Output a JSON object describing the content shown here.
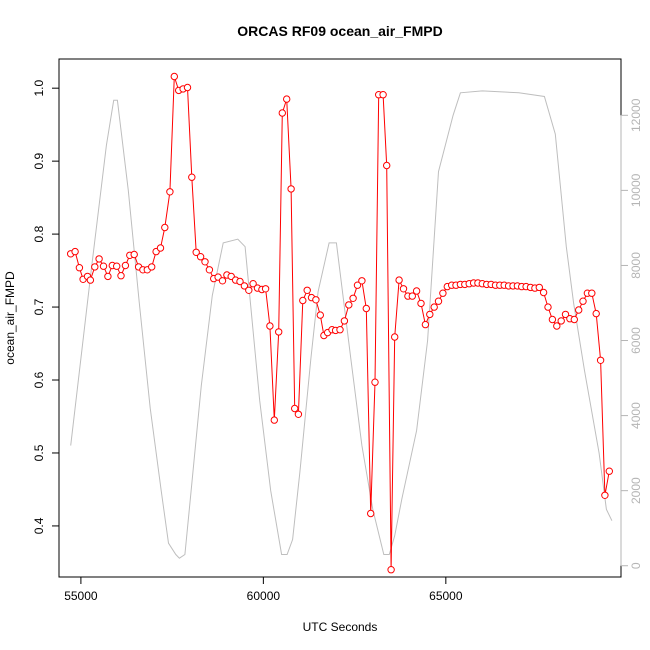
{
  "chart_data": {
    "type": "line",
    "title": "ORCAS RF09 ocean_air_FMPD",
    "xlabel": "UTC Seconds",
    "ylabel": "ocean_air_FMPD",
    "xlim": [
      54400,
      69800
    ],
    "ylim": [
      0.33,
      1.04
    ],
    "y2lim": [
      -300,
      13500
    ],
    "x_ticks": [
      55000,
      60000,
      65000
    ],
    "y_ticks": [
      0.4,
      0.5,
      0.6,
      0.7,
      0.8,
      0.9,
      1.0
    ],
    "y2_ticks": [
      0,
      2000,
      4000,
      6000,
      8000,
      10000,
      12000
    ],
    "grid": false,
    "legend": "none",
    "series": [
      {
        "axis": "left",
        "style": "points-line",
        "color": "#ff0000",
        "x": [
          54720,
          54840,
          54960,
          55060,
          55180,
          55260,
          55380,
          55500,
          55620,
          55740,
          55860,
          55980,
          56100,
          56220,
          56340,
          56460,
          56580,
          56700,
          56820,
          56940,
          57060,
          57180,
          57300,
          57440,
          57560,
          57680,
          57800,
          57920,
          58040,
          58160,
          58280,
          58400,
          58520,
          58640,
          58760,
          58880,
          59000,
          59120,
          59240,
          59360,
          59480,
          59600,
          59720,
          59840,
          59960,
          60060,
          60180,
          60300,
          60420,
          60520,
          60640,
          60760,
          60860,
          60960,
          61080,
          61200,
          61320,
          61440,
          61560,
          61660,
          61760,
          61880,
          61980,
          62100,
          62220,
          62340,
          62460,
          62580,
          62700,
          62820,
          62940,
          63060,
          63160,
          63280,
          63380,
          63500,
          63600,
          63720,
          63840,
          63960,
          64080,
          64200,
          64320,
          64440,
          64560,
          64680,
          64800,
          64920,
          65040,
          65160,
          65280,
          65400,
          65520,
          65640,
          65760,
          65880,
          66000,
          66120,
          66240,
          66360,
          66480,
          66600,
          66720,
          66840,
          66960,
          67080,
          67200,
          67320,
          67440,
          67560,
          67680,
          67800,
          67920,
          68040,
          68160,
          68280,
          68400,
          68520,
          68640,
          68760,
          68880,
          69000,
          69120,
          69240,
          69360,
          69480
        ],
        "values": [
          0.773,
          0.776,
          0.754,
          0.738,
          0.742,
          0.737,
          0.755,
          0.766,
          0.756,
          0.742,
          0.757,
          0.756,
          0.743,
          0.757,
          0.771,
          0.772,
          0.755,
          0.751,
          0.751,
          0.755,
          0.776,
          0.781,
          0.809,
          0.858,
          1.016,
          0.997,
          0.999,
          1.001,
          0.878,
          0.775,
          0.769,
          0.762,
          0.751,
          0.739,
          0.741,
          0.736,
          0.744,
          0.742,
          0.737,
          0.735,
          0.729,
          0.723,
          0.732,
          0.726,
          0.724,
          0.725,
          0.674,
          0.545,
          0.666,
          0.966,
          0.985,
          0.862,
          0.561,
          0.553,
          0.709,
          0.723,
          0.713,
          0.71,
          0.689,
          0.661,
          0.665,
          0.669,
          0.668,
          0.669,
          0.681,
          0.703,
          0.712,
          0.73,
          0.736,
          0.698,
          0.417,
          0.597,
          0.991,
          0.991,
          0.894,
          0.34,
          0.659,
          0.737,
          0.725,
          0.715,
          0.715,
          0.722,
          0.705,
          0.676,
          0.69,
          0.7,
          0.708,
          0.719,
          0.728,
          0.73,
          0.73,
          0.731,
          0.731,
          0.732,
          0.733,
          0.733,
          0.732,
          0.731,
          0.731,
          0.73,
          0.73,
          0.73,
          0.729,
          0.729,
          0.729,
          0.728,
          0.728,
          0.727,
          0.726,
          0.727,
          0.72,
          0.7,
          0.683,
          0.674,
          0.681,
          0.69,
          0.684,
          0.683,
          0.696,
          0.708,
          0.719,
          0.719,
          0.691,
          0.627,
          0.442,
          0.475
        ]
      },
      {
        "axis": "right",
        "style": "line",
        "color": "#bebebe",
        "x": [
          54720,
          55300,
          55700,
          55900,
          56000,
          56300,
          56600,
          56900,
          57200,
          57400,
          57600,
          57700,
          57850,
          58000,
          58300,
          58600,
          58900,
          59300,
          59500,
          59900,
          60200,
          60500,
          60650,
          60800,
          61000,
          61300,
          61500,
          61800,
          62000,
          62400,
          62700,
          63000,
          63300,
          63450,
          63600,
          63800,
          64200,
          64500,
          64800,
          65200,
          65400,
          66000,
          67000,
          67700,
          68000,
          68300,
          68500,
          68800,
          69200,
          69400,
          69550
        ],
        "values": [
          3200,
          8000,
          11200,
          12400,
          12400,
          10000,
          7000,
          4200,
          2000,
          600,
          300,
          200,
          300,
          1800,
          4800,
          7200,
          8600,
          8700,
          8500,
          4400,
          2000,
          300,
          300,
          700,
          2500,
          5500,
          7300,
          8600,
          8600,
          5500,
          3200,
          1500,
          300,
          300,
          800,
          1800,
          3600,
          6000,
          10500,
          12000,
          12600,
          12650,
          12600,
          12500,
          11500,
          8500,
          7000,
          5200,
          3000,
          1500,
          1200
        ]
      }
    ]
  }
}
